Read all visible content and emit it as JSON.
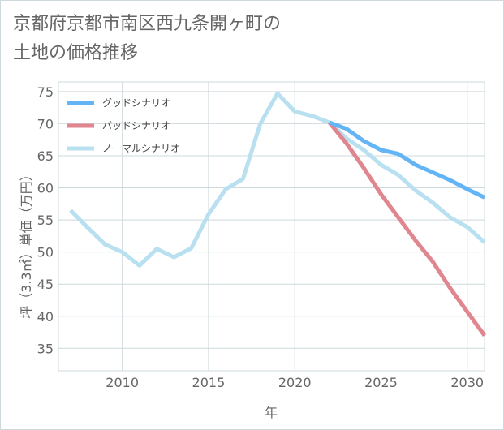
{
  "title_line1": "京都府京都市南区西九条開ヶ町の",
  "title_line2": "土地の価格推移",
  "chart_data": {
    "type": "line",
    "title": "京都府京都市南区西九条開ヶ町の土地の価格推移",
    "xlabel": "年",
    "ylabel": "坪（3.3㎡）単価（万円）",
    "xlim": [
      2006.3,
      2031
    ],
    "ylim": [
      31.5,
      76.5
    ],
    "xticks": [
      2010,
      2015,
      2020,
      2025,
      2030
    ],
    "yticks": [
      35,
      40,
      45,
      50,
      55,
      60,
      65,
      70,
      75
    ],
    "grid": true,
    "legend_position": "top-left",
    "series": [
      {
        "name": "グッドシナリオ",
        "color": "#64b5f6",
        "x": [
          2022,
          2023,
          2024,
          2025,
          2026,
          2027,
          2028,
          2029,
          2030,
          2031
        ],
        "y": [
          70.2,
          69.2,
          67.3,
          65.9,
          65.3,
          63.6,
          62.4,
          61.2,
          59.8,
          58.5
        ]
      },
      {
        "name": "バッドシナリオ",
        "color": "#e0868f",
        "x": [
          2022,
          2023,
          2024,
          2025,
          2026,
          2027,
          2028,
          2029,
          2030,
          2031
        ],
        "y": [
          70.2,
          66.9,
          63.1,
          59.0,
          55.4,
          51.8,
          48.5,
          44.4,
          40.7,
          37.0
        ]
      },
      {
        "name": "ノーマルシナリオ",
        "color": "#b8e0f0",
        "x": [
          2007,
          2008,
          2009,
          2010,
          2011,
          2012,
          2013,
          2014,
          2015,
          2016,
          2017,
          2018,
          2019,
          2020,
          2021,
          2022,
          2023,
          2024,
          2025,
          2026,
          2027,
          2028,
          2029,
          2030,
          2031
        ],
        "y": [
          56.5,
          53.8,
          51.2,
          50.0,
          47.9,
          50.5,
          49.2,
          50.6,
          55.9,
          59.8,
          61.4,
          70.0,
          74.7,
          71.9,
          71.2,
          70.2,
          67.7,
          65.9,
          63.6,
          62.0,
          59.6,
          57.7,
          55.4,
          53.9,
          51.5
        ]
      }
    ]
  }
}
